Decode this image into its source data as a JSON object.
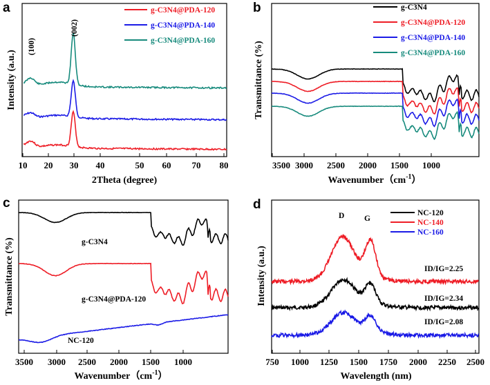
{
  "chart_data": [
    {
      "panel": "a",
      "type": "line",
      "title": "",
      "xlabel": "2Theta  (degree)",
      "ylabel": "Intensity (a.u.)",
      "xlim": [
        10,
        80
      ],
      "xticks": [
        10,
        20,
        30,
        40,
        50,
        60,
        70,
        80
      ],
      "yticks": [],
      "legend": {
        "position": "top-right"
      },
      "annotations": [
        "(100)",
        "(002)"
      ],
      "series": [
        {
          "name": "g-C3N4@PDA-120",
          "color": "#ee1c25",
          "peaks_at": [
            13,
            27.5
          ],
          "baseline": 0.05
        },
        {
          "name": "g-C3N4@PDA-140",
          "color": "#1a1ae6",
          "peaks_at": [
            13,
            27.5
          ],
          "baseline": 0.4
        },
        {
          "name": "g-C3N4@PDA-160",
          "color": "#168a7c",
          "peaks_at": [
            13,
            27.5
          ],
          "baseline": 0.75
        }
      ]
    },
    {
      "panel": "b",
      "type": "line",
      "title": "",
      "xlabel": "Wavenumber（cm-1）",
      "ylabel": "Transmittance (%)",
      "xlim": [
        3750,
        500
      ],
      "xticks": [
        3500,
        3000,
        2500,
        2000,
        1500,
        1000
      ],
      "legend": {
        "position": "top-right"
      },
      "series": [
        {
          "name": "g-C3N4",
          "color": "#000000"
        },
        {
          "name": "g-C3N4@PDA-120",
          "color": "#ee1c25"
        },
        {
          "name": "g-C3N4@PDA-140",
          "color": "#1a1ae6"
        },
        {
          "name": "g-C3N4@PDA-160",
          "color": "#168a7c"
        }
      ]
    },
    {
      "panel": "c",
      "type": "line",
      "title": "",
      "xlabel": "Wavenumber（cm-1）",
      "ylabel": "Transmittance (%)",
      "xlim": [
        3750,
        500
      ],
      "xticks": [
        3500,
        3000,
        2500,
        2000,
        1500,
        1000
      ],
      "series": [
        {
          "name": "g-C3N4",
          "color": "#000000"
        },
        {
          "name": "g-C3N4@PDA-120",
          "color": "#ee1c25"
        },
        {
          "name": "NC-120",
          "color": "#1a1ae6"
        }
      ]
    },
    {
      "panel": "d",
      "type": "line",
      "title": "",
      "xlabel": "Wavelength (nm)",
      "ylabel": "Intensity (a.u.)",
      "xlim": [
        750,
        2500
      ],
      "xticks": [
        750,
        1000,
        1250,
        1500,
        1750,
        2000,
        2250,
        2500
      ],
      "legend": {
        "position": "top-right"
      },
      "annotations": [
        "D",
        "G"
      ],
      "series": [
        {
          "name": "NC-120",
          "color": "#000000",
          "ratio": "ID/IG=2.34",
          "D": 1350,
          "G": 1580
        },
        {
          "name": "NC-140",
          "color": "#ee1c25",
          "ratio": "ID/IG=2.25",
          "D": 1350,
          "G": 1580
        },
        {
          "name": "NC-160",
          "color": "#1a1ae6",
          "ratio": "ID/IG=2.08",
          "D": 1350,
          "G": 1580
        }
      ]
    }
  ],
  "labels": {
    "a": {
      "letter": "a",
      "ylabel": "Intensity (a.u.)",
      "xlabel": "2Theta  (degree)",
      "peak1": "(100)",
      "peak2": "(002)",
      "legend": [
        "g-C3N4@PDA-120",
        "g-C3N4@PDA-140",
        "g-C3N4@PDA-160"
      ],
      "ticks": [
        "10",
        "20",
        "30",
        "40",
        "50",
        "60",
        "70",
        "80"
      ]
    },
    "b": {
      "letter": "b",
      "ylabel": "Transmittance (%)",
      "xlabel_main": "Wavenumber（cm",
      "xlabel_sup": "-1",
      "xlabel_end": "）",
      "legend": [
        "g-C3N4",
        "g-C3N4@PDA-120",
        "g-C3N4@PDA-140",
        "g-C3N4@PDA-160"
      ],
      "ticks": [
        "3500",
        "3000",
        "2500",
        "2000",
        "1500",
        "1000"
      ]
    },
    "c": {
      "letter": "c",
      "ylabel": "Transmittance (%)",
      "xlabel_main": "Wavenumber（cm",
      "xlabel_sup": "-1",
      "xlabel_end": "）",
      "series_labels": [
        "g-C3N4",
        "g-C3N4@PDA-120",
        "NC-120"
      ],
      "ticks": [
        "3500",
        "3000",
        "2500",
        "2000",
        "1500",
        "1000"
      ]
    },
    "d": {
      "letter": "d",
      "ylabel": "Intensity (a.u.)",
      "xlabel": "Wavelength (nm)",
      "peakD": "D",
      "peakG": "G",
      "legend": [
        "NC-120",
        "NC-140",
        "NC-160"
      ],
      "ratios": [
        "ID/IG=2.25",
        "ID/IG=2.34",
        "ID/IG=2.08"
      ],
      "ticks": [
        "750",
        "1000",
        "1250",
        "1500",
        "1750",
        "2000",
        "2250",
        "2500"
      ]
    }
  }
}
